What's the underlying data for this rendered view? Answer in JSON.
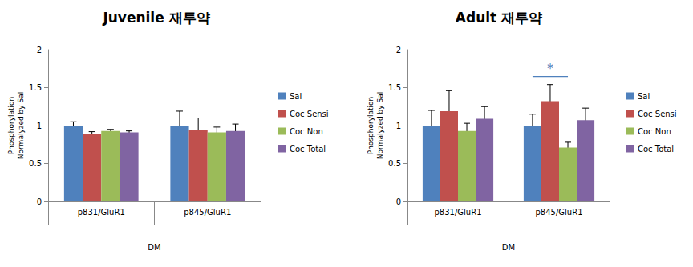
{
  "chart_data": [
    {
      "type": "bar",
      "title": "Juvenile 재투약",
      "categories": [
        "p831/GluR1",
        "p845/GluR1"
      ],
      "series": [
        {
          "name": "Sal",
          "color": "#4f81bd",
          "values": [
            1.0,
            0.99
          ],
          "errors": [
            0.05,
            0.2
          ]
        },
        {
          "name": "Coc Sensi",
          "color": "#c0504d",
          "values": [
            0.89,
            0.94
          ],
          "errors": [
            0.03,
            0.16
          ]
        },
        {
          "name": "Coc Non",
          "color": "#9bbb59",
          "values": [
            0.93,
            0.91
          ],
          "errors": [
            0.02,
            0.07
          ]
        },
        {
          "name": "Coc Total",
          "color": "#8064a2",
          "values": [
            0.91,
            0.93
          ],
          "errors": [
            0.02,
            0.09
          ]
        }
      ],
      "ylim": [
        0,
        2
      ],
      "yticks": [
        0,
        0.5,
        1,
        1.5,
        2
      ],
      "y_label": "Phosphorylation\nNormalyzed by Sal",
      "x_label": "DM",
      "grid": false,
      "legend": "right"
    },
    {
      "type": "bar",
      "title": "Adult 재투약",
      "categories": [
        "p831/GluR1",
        "p845/GluR1"
      ],
      "series": [
        {
          "name": "Sal",
          "color": "#4f81bd",
          "values": [
            1.0,
            1.0
          ],
          "errors": [
            0.2,
            0.15
          ]
        },
        {
          "name": "Coc Sensi",
          "color": "#c0504d",
          "values": [
            1.19,
            1.32
          ],
          "errors": [
            0.27,
            0.22
          ]
        },
        {
          "name": "Coc Non",
          "color": "#9bbb59",
          "values": [
            0.93,
            0.71
          ],
          "errors": [
            0.1,
            0.07
          ]
        },
        {
          "name": "Coc Total",
          "color": "#8064a2",
          "values": [
            1.09,
            1.07
          ],
          "errors": [
            0.16,
            0.16
          ]
        }
      ],
      "ylim": [
        0,
        2
      ],
      "yticks": [
        0,
        0.5,
        1,
        1.5,
        2
      ],
      "y_label": "Phosphorylation\nNormalyzed by Sal",
      "x_label": "DM",
      "grid": false,
      "legend": "right",
      "annotations": [
        {
          "text": "*",
          "category": "p845/GluR1",
          "from": "Sal",
          "to": "Coc Non"
        }
      ]
    }
  ]
}
